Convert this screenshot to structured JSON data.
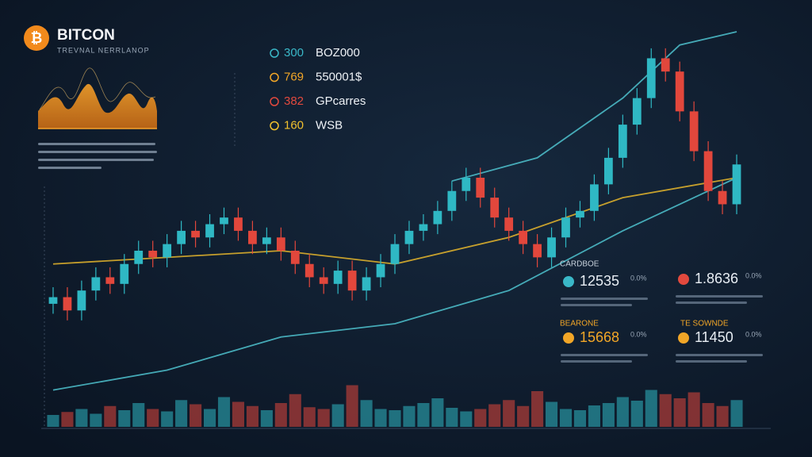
{
  "header": {
    "title": "BITCON",
    "subtitle": "TREVNAL NERRLANOP"
  },
  "tickers": [
    {
      "value": "300",
      "label": "BOZ000",
      "color": "#3ab8c8"
    },
    {
      "value": "769",
      "label": "550001$",
      "color": "#f2a627"
    },
    {
      "value": "382",
      "label": "GPcarres",
      "color": "#e2493e"
    },
    {
      "value": "160",
      "label": "WSB",
      "color": "#f2c12e"
    }
  ],
  "stats": [
    {
      "heading": "CARDBOE",
      "value": "12535",
      "change": "0.0%",
      "color": "#3ab8c8",
      "text_color": "#e8eef4"
    },
    {
      "heading": "",
      "value": "1.8636",
      "change": "0.0%",
      "color": "#e2493e",
      "text_color": "#e8eef4"
    },
    {
      "heading": "BEARONE",
      "value": "15668",
      "change": "0.0%",
      "color": "#f2a627",
      "text_color": "#f2a627"
    },
    {
      "heading": "TE SOWNDE",
      "value": "11450",
      "change": "0.0%",
      "color": "#f2a627",
      "text_color": "#e8eef4"
    }
  ],
  "chart_data": {
    "type": "candlestick",
    "open": [
      18,
      20,
      16,
      22,
      26,
      24,
      30,
      34,
      32,
      36,
      40,
      38,
      42,
      44,
      40,
      36,
      38,
      34,
      30,
      26,
      24,
      28,
      22,
      26,
      30,
      36,
      40,
      42,
      46,
      52,
      56,
      50,
      44,
      40,
      36,
      32,
      38,
      44,
      46,
      54,
      62,
      72,
      80,
      92,
      88,
      76,
      64,
      52,
      48
    ],
    "high": [
      23,
      23,
      25,
      29,
      29,
      33,
      37,
      37,
      39,
      43,
      43,
      45,
      47,
      47,
      43,
      41,
      41,
      37,
      33,
      29,
      31,
      31,
      29,
      33,
      39,
      43,
      45,
      49,
      55,
      59,
      59,
      53,
      47,
      43,
      39,
      41,
      47,
      49,
      57,
      65,
      75,
      83,
      95,
      95,
      91,
      79,
      67,
      55,
      63
    ],
    "low": [
      15,
      13,
      13,
      19,
      21,
      21,
      27,
      29,
      29,
      33,
      35,
      35,
      39,
      37,
      33,
      33,
      31,
      27,
      23,
      21,
      21,
      19,
      19,
      23,
      27,
      33,
      37,
      39,
      43,
      49,
      47,
      41,
      37,
      33,
      29,
      29,
      35,
      41,
      43,
      51,
      59,
      69,
      77,
      85,
      73,
      61,
      49,
      45,
      45
    ],
    "close": [
      20,
      16,
      22,
      26,
      24,
      30,
      34,
      32,
      36,
      40,
      38,
      42,
      44,
      40,
      36,
      38,
      34,
      30,
      26,
      24,
      28,
      22,
      26,
      30,
      36,
      40,
      42,
      46,
      52,
      56,
      50,
      44,
      40,
      36,
      32,
      38,
      44,
      46,
      54,
      62,
      72,
      80,
      92,
      88,
      76,
      64,
      52,
      48,
      60
    ],
    "volume": [
      20,
      25,
      30,
      22,
      35,
      28,
      40,
      30,
      26,
      45,
      38,
      30,
      50,
      42,
      35,
      28,
      40,
      55,
      33,
      30,
      38,
      70,
      45,
      30,
      28,
      35,
      40,
      48,
      32,
      26,
      30,
      38,
      45,
      35,
      60,
      42,
      30,
      28,
      36,
      40,
      50,
      44,
      62,
      55,
      48,
      58,
      40,
      35,
      45
    ],
    "ylim": [
      -10,
      100
    ],
    "volume_lim": [
      0,
      100
    ],
    "up_color": "#2fb8c4",
    "down_color": "#e2473c",
    "lines": [
      {
        "color": "#4fc3cf",
        "x": [
          0,
          8,
          16,
          24,
          32,
          40,
          48
        ],
        "values": [
          -8,
          -2,
          8,
          12,
          22,
          40,
          56
        ]
      },
      {
        "color": "#e6b62c",
        "x": [
          0,
          8,
          16,
          24,
          32,
          40,
          48
        ],
        "values": [
          30,
          32,
          34,
          30,
          38,
          50,
          56
        ]
      },
      {
        "color": "#4fc3cf",
        "x": [
          28,
          34,
          40,
          44,
          48
        ],
        "values": [
          55,
          62,
          80,
          96,
          100
        ]
      }
    ]
  }
}
